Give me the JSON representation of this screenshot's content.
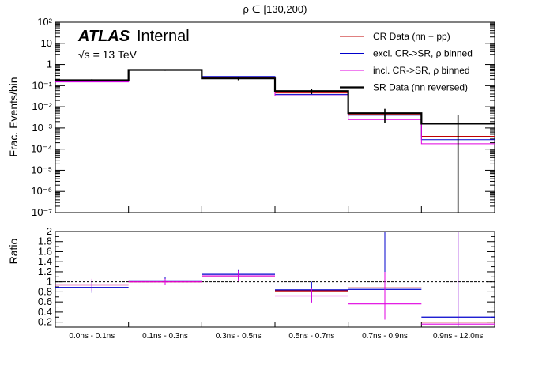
{
  "title": "ρ ∈ [130,200)",
  "atlas_label": {
    "bold": "ATLAS",
    "normal": "Internal"
  },
  "energy_label": "√s = 13 TeV",
  "chart_data": [
    {
      "type": "histogram",
      "panel": "main",
      "ylabel": "Frac. Events/bin",
      "yscale": "log",
      "ylim": [
        1e-07,
        100
      ],
      "yticks": [
        {
          "value": 1e-07,
          "label": "10⁻⁷"
        },
        {
          "value": 1e-06,
          "label": "10⁻⁶"
        },
        {
          "value": 1e-05,
          "label": "10⁻⁵"
        },
        {
          "value": 0.0001,
          "label": "10⁻⁴"
        },
        {
          "value": 0.001,
          "label": "10⁻³"
        },
        {
          "value": 0.01,
          "label": "10⁻²"
        },
        {
          "value": 0.1,
          "label": "10⁻¹"
        },
        {
          "value": 1,
          "label": "1"
        },
        {
          "value": 10,
          "label": "10"
        },
        {
          "value": 100,
          "label": "10²"
        }
      ],
      "categories": [
        "0.0ns - 0.1ns",
        "0.1ns - 0.3ns",
        "0.3ns - 0.5ns",
        "0.5ns - 0.7ns",
        "0.7ns - 0.9ns",
        "0.9ns - 12.0ns"
      ],
      "legend_position": "top-right",
      "series": [
        {
          "name": "CR Data (nn + pp)",
          "color": "#c00000",
          "width": 1,
          "values": [
            0.17,
            0.55,
            0.24,
            0.045,
            0.0045,
            0.0004
          ],
          "errors": [
            null,
            null,
            null,
            null,
            null,
            null
          ]
        },
        {
          "name": "excl. CR->SR, ρ binned",
          "color": "#0000cc",
          "width": 1,
          "values": [
            0.16,
            0.56,
            0.27,
            0.038,
            0.004,
            0.00028
          ],
          "errors": [
            null,
            null,
            null,
            null,
            null,
            null
          ]
        },
        {
          "name": "incl. CR->SR, ρ binned",
          "color": "#e000e0",
          "width": 1,
          "values": [
            0.15,
            0.54,
            0.25,
            0.033,
            0.0025,
            0.00018
          ],
          "errors": [
            null,
            null,
            null,
            null,
            null,
            null
          ]
        },
        {
          "name": "SR Data (nn reversed)",
          "color": "#000000",
          "width": 2.2,
          "values": [
            0.18,
            0.55,
            0.22,
            0.055,
            0.005,
            0.0016
          ],
          "errors": [
            [
              0.16,
              0.2
            ],
            [
              0.5,
              0.6
            ],
            [
              0.18,
              0.26
            ],
            [
              0.04,
              0.07
            ],
            [
              0.0018,
              0.008
            ],
            [
              1e-07,
              0.004
            ]
          ]
        }
      ]
    },
    {
      "type": "ratio",
      "panel": "ratio",
      "ylabel": "Ratio",
      "ylim": [
        0.1,
        2.0
      ],
      "yticks": [
        {
          "value": 0.2,
          "label": "0.2"
        },
        {
          "value": 0.4,
          "label": "0.4"
        },
        {
          "value": 0.6,
          "label": "0.6"
        },
        {
          "value": 0.8,
          "label": "0.8"
        },
        {
          "value": 1.0,
          "label": "1"
        },
        {
          "value": 1.2,
          "label": "1.2"
        },
        {
          "value": 1.4,
          "label": "1.4"
        },
        {
          "value": 1.6,
          "label": "1.6"
        },
        {
          "value": 1.8,
          "label": "1.8"
        },
        {
          "value": 2.0,
          "label": "2"
        }
      ],
      "reference_line": 1.0,
      "categories": [
        "0.0ns - 0.1ns",
        "0.1ns - 0.3ns",
        "0.3ns - 0.5ns",
        "0.5ns - 0.7ns",
        "0.7ns - 0.9ns",
        "0.9ns - 12.0ns"
      ],
      "series": [
        {
          "name": "CR Data (nn + pp)",
          "color": "#c00000",
          "values": [
            0.94,
            1.0,
            1.12,
            0.82,
            0.88,
            0.2
          ],
          "errors": [
            null,
            null,
            null,
            null,
            null,
            null
          ]
        },
        {
          "name": "excl. CR->SR, ρ binned",
          "color": "#0000cc",
          "values": [
            0.89,
            1.02,
            1.15,
            0.84,
            0.85,
            0.3
          ],
          "errors": [
            [
              0.78,
              1.0
            ],
            [
              0.95,
              1.1
            ],
            [
              1.05,
              1.25
            ],
            [
              0.6,
              1.0
            ],
            [
              0.3,
              2.0
            ],
            [
              0.1,
              2.0
            ]
          ]
        },
        {
          "name": "incl. CR->SR, ρ binned",
          "color": "#e000e0",
          "values": [
            0.94,
            1.0,
            1.12,
            0.72,
            0.56,
            0.16
          ],
          "errors": [
            [
              0.82,
              1.06
            ],
            [
              0.94,
              1.06
            ],
            [
              1.02,
              1.22
            ],
            [
              0.58,
              0.88
            ],
            [
              0.25,
              1.2
            ],
            [
              0.1,
              2.0
            ]
          ]
        }
      ]
    }
  ]
}
